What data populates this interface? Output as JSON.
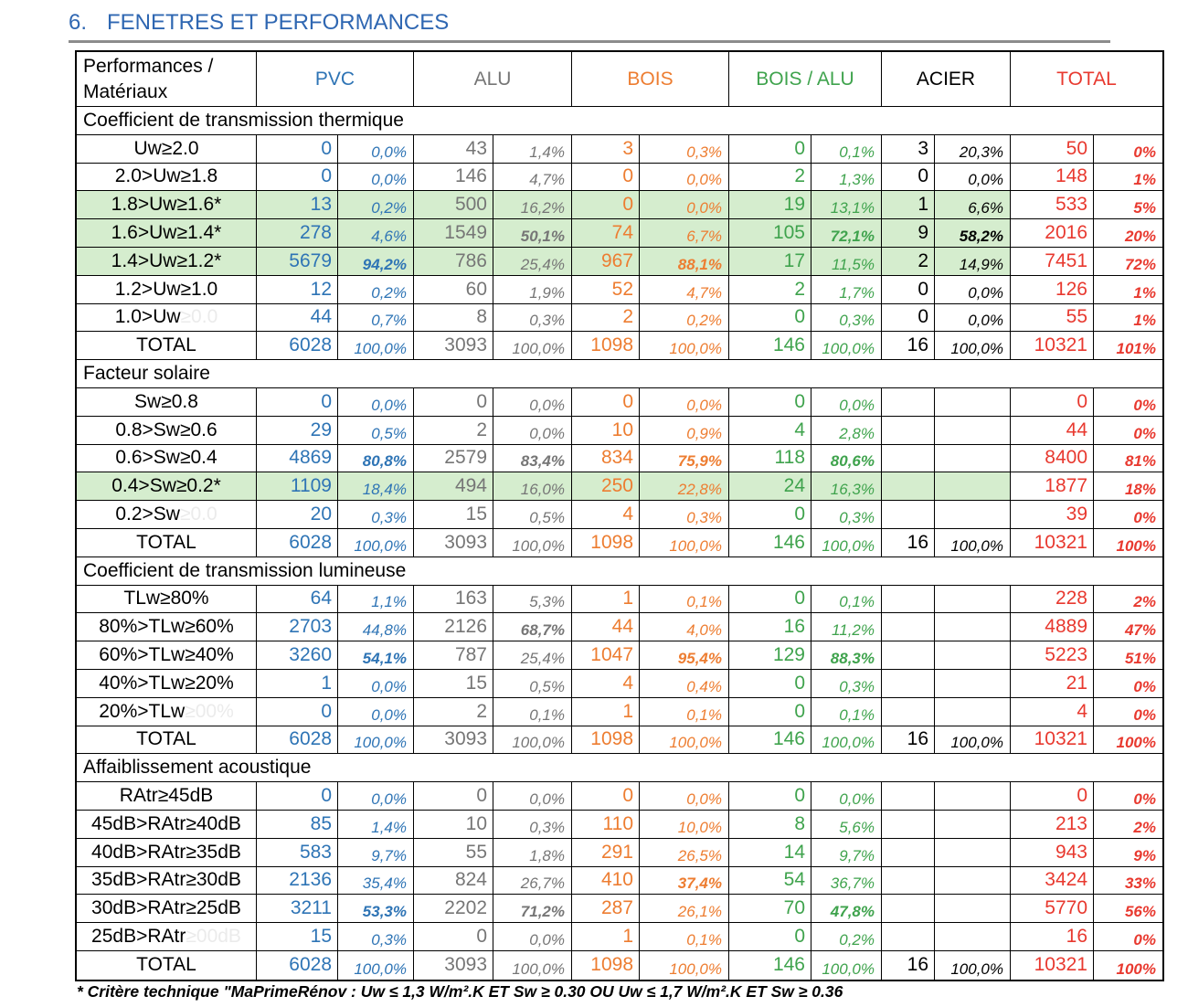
{
  "title": {
    "number": "6.",
    "text": "FENETRES ET PERFORMANCES"
  },
  "colors": {
    "title": "#2F67B2",
    "rule": "#8C8C8C",
    "highlight": "#D5EDCE",
    "faint": "#EBEBEB",
    "materials": [
      "#2E74B5",
      "#767676",
      "#ED7D31",
      "#3FA34D",
      "#000000",
      "#E8392F"
    ]
  },
  "header": {
    "corner": [
      "Performances /",
      "Matériaux"
    ],
    "materials": [
      "PVC",
      "ALU",
      "BOIS",
      "BOIS / ALU",
      "ACIER",
      "TOTAL"
    ]
  },
  "sections": [
    {
      "title": "Coefficient de transmission thermique",
      "rows": [
        {
          "label": "Uw≥2.0",
          "cells": [
            [
              "0",
              "0,0%"
            ],
            [
              "43",
              "1,4%"
            ],
            [
              "3",
              "0,3%"
            ],
            [
              "0",
              "0,1%"
            ],
            [
              "3",
              "20,3%"
            ],
            [
              "50",
              "0%"
            ]
          ]
        },
        {
          "label": "2.0>Uw≥1.8",
          "cells": [
            [
              "0",
              "0,0%"
            ],
            [
              "146",
              "4,7%"
            ],
            [
              "0",
              "0,0%"
            ],
            [
              "2",
              "1,3%"
            ],
            [
              "0",
              "0,0%"
            ],
            [
              "148",
              "1%"
            ]
          ]
        },
        {
          "label": "1.8>Uw≥1.6*",
          "highlight": true,
          "cells": [
            [
              "13",
              "0,2%"
            ],
            [
              "500",
              "16,2%"
            ],
            [
              "0",
              "0,0%"
            ],
            [
              "19",
              "13,1%"
            ],
            [
              "1",
              "6,6%"
            ],
            [
              "533",
              "5%"
            ]
          ]
        },
        {
          "label": "1.6>Uw≥1.4*",
          "highlight": true,
          "emphasis": [
            1,
            3,
            4
          ],
          "cells": [
            [
              "278",
              "4,6%"
            ],
            [
              "1549",
              "50,1%"
            ],
            [
              "74",
              "6,7%"
            ],
            [
              "105",
              "72,1%"
            ],
            [
              "9",
              "58,2%"
            ],
            [
              "2016",
              "20%"
            ]
          ]
        },
        {
          "label": "1.4>Uw≥1.2*",
          "highlight": true,
          "emphasis": [
            0,
            2
          ],
          "cells": [
            [
              "5679",
              "94,2%"
            ],
            [
              "786",
              "25,4%"
            ],
            [
              "967",
              "88,1%"
            ],
            [
              "17",
              "11,5%"
            ],
            [
              "2",
              "14,9%"
            ],
            [
              "7451",
              "72%"
            ]
          ]
        },
        {
          "label": "1.2>Uw≥1.0",
          "cells": [
            [
              "12",
              "0,2%"
            ],
            [
              "60",
              "1,9%"
            ],
            [
              "52",
              "4,7%"
            ],
            [
              "2",
              "1,7%"
            ],
            [
              "0",
              "0,0%"
            ],
            [
              "126",
              "1%"
            ]
          ]
        },
        {
          "label": "1.0>Uw",
          "label_faint": "≥0.0",
          "cells": [
            [
              "44",
              "0,7%"
            ],
            [
              "8",
              "0,3%"
            ],
            [
              "2",
              "0,2%"
            ],
            [
              "0",
              "0,3%"
            ],
            [
              "0",
              "0,0%"
            ],
            [
              "55",
              "1%"
            ]
          ]
        },
        {
          "label": "TOTAL",
          "total": true,
          "cells": [
            [
              "6028",
              "100,0%"
            ],
            [
              "3093",
              "100,0%"
            ],
            [
              "1098",
              "100,0%"
            ],
            [
              "146",
              "100,0%"
            ],
            [
              "16",
              "100,0%"
            ],
            [
              "10321",
              "101%"
            ]
          ]
        }
      ]
    },
    {
      "title": "Facteur solaire",
      "rows": [
        {
          "label": "Sw≥0.8",
          "cells": [
            [
              "0",
              "0,0%"
            ],
            [
              "0",
              "0,0%"
            ],
            [
              "0",
              "0,0%"
            ],
            [
              "0",
              "0,0%"
            ],
            [
              "",
              ""
            ],
            [
              "0",
              "0%"
            ]
          ]
        },
        {
          "label": "0.8>Sw≥0.6",
          "cells": [
            [
              "29",
              "0,5%"
            ],
            [
              "2",
              "0,0%"
            ],
            [
              "10",
              "0,9%"
            ],
            [
              "4",
              "2,8%"
            ],
            [
              "",
              ""
            ],
            [
              "44",
              "0%"
            ]
          ]
        },
        {
          "label": "0.6>Sw≥0.4",
          "emphasis": [
            0,
            1,
            2,
            3
          ],
          "cells": [
            [
              "4869",
              "80,8%"
            ],
            [
              "2579",
              "83,4%"
            ],
            [
              "834",
              "75,9%"
            ],
            [
              "118",
              "80,6%"
            ],
            [
              "",
              ""
            ],
            [
              "8400",
              "81%"
            ]
          ]
        },
        {
          "label": "0.4>Sw≥0.2*",
          "highlight": true,
          "cells": [
            [
              "1109",
              "18,4%"
            ],
            [
              "494",
              "16,0%"
            ],
            [
              "250",
              "22,8%"
            ],
            [
              "24",
              "16,3%"
            ],
            [
              "",
              ""
            ],
            [
              "1877",
              "18%"
            ]
          ]
        },
        {
          "label": "0.2>Sw",
          "label_faint": "≥0.0",
          "cells": [
            [
              "20",
              "0,3%"
            ],
            [
              "15",
              "0,5%"
            ],
            [
              "4",
              "0,3%"
            ],
            [
              "0",
              "0,3%"
            ],
            [
              "",
              ""
            ],
            [
              "39",
              "0%"
            ]
          ]
        },
        {
          "label": "TOTAL",
          "total": true,
          "cells": [
            [
              "6028",
              "100,0%"
            ],
            [
              "3093",
              "100,0%"
            ],
            [
              "1098",
              "100,0%"
            ],
            [
              "146",
              "100,0%"
            ],
            [
              "16",
              "100,0%"
            ],
            [
              "10321",
              "100%"
            ]
          ]
        }
      ]
    },
    {
      "title": "Coefficient de transmission lumineuse",
      "rows": [
        {
          "label": "TLw≥80%",
          "cells": [
            [
              "64",
              "1,1%"
            ],
            [
              "163",
              "5,3%"
            ],
            [
              "1",
              "0,1%"
            ],
            [
              "0",
              "0,1%"
            ],
            [
              "",
              ""
            ],
            [
              "228",
              "2%"
            ]
          ]
        },
        {
          "label": "80%>TLw≥60%",
          "emphasis": [
            1
          ],
          "cells": [
            [
              "2703",
              "44,8%"
            ],
            [
              "2126",
              "68,7%"
            ],
            [
              "44",
              "4,0%"
            ],
            [
              "16",
              "11,2%"
            ],
            [
              "",
              ""
            ],
            [
              "4889",
              "47%"
            ]
          ]
        },
        {
          "label": "60%>TLw≥40%",
          "emphasis": [
            0,
            2,
            3
          ],
          "cells": [
            [
              "3260",
              "54,1%"
            ],
            [
              "787",
              "25,4%"
            ],
            [
              "1047",
              "95,4%"
            ],
            [
              "129",
              "88,3%"
            ],
            [
              "",
              ""
            ],
            [
              "5223",
              "51%"
            ]
          ]
        },
        {
          "label": "40%>TLw≥20%",
          "cells": [
            [
              "1",
              "0,0%"
            ],
            [
              "15",
              "0,5%"
            ],
            [
              "4",
              "0,4%"
            ],
            [
              "0",
              "0,3%"
            ],
            [
              "",
              ""
            ],
            [
              "21",
              "0%"
            ]
          ]
        },
        {
          "label": "20%>TLw",
          "label_faint": "≥00%",
          "cells": [
            [
              "0",
              "0,0%"
            ],
            [
              "2",
              "0,1%"
            ],
            [
              "1",
              "0,1%"
            ],
            [
              "0",
              "0,1%"
            ],
            [
              "",
              ""
            ],
            [
              "4",
              "0%"
            ]
          ]
        },
        {
          "label": "TOTAL",
          "total": true,
          "cells": [
            [
              "6028",
              "100,0%"
            ],
            [
              "3093",
              "100,0%"
            ],
            [
              "1098",
              "100,0%"
            ],
            [
              "146",
              "100,0%"
            ],
            [
              "16",
              "100,0%"
            ],
            [
              "10321",
              "100%"
            ]
          ]
        }
      ]
    },
    {
      "title": "Affaiblissement acoustique",
      "rows": [
        {
          "label": "RAtr≥45dB",
          "cells": [
            [
              "0",
              "0,0%"
            ],
            [
              "0",
              "0,0%"
            ],
            [
              "0",
              "0,0%"
            ],
            [
              "0",
              "0,0%"
            ],
            [
              "",
              ""
            ],
            [
              "0",
              "0%"
            ]
          ]
        },
        {
          "label": "45dB>RAtr≥40dB",
          "cells": [
            [
              "85",
              "1,4%"
            ],
            [
              "10",
              "0,3%"
            ],
            [
              "110",
              "10,0%"
            ],
            [
              "8",
              "5,6%"
            ],
            [
              "",
              ""
            ],
            [
              "213",
              "2%"
            ]
          ]
        },
        {
          "label": "40dB>RAtr≥35dB",
          "cells": [
            [
              "583",
              "9,7%"
            ],
            [
              "55",
              "1,8%"
            ],
            [
              "291",
              "26,5%"
            ],
            [
              "14",
              "9,7%"
            ],
            [
              "",
              ""
            ],
            [
              "943",
              "9%"
            ]
          ]
        },
        {
          "label": "35dB>RAtr≥30dB",
          "emphasis": [
            2
          ],
          "cells": [
            [
              "2136",
              "35,4%"
            ],
            [
              "824",
              "26,7%"
            ],
            [
              "410",
              "37,4%"
            ],
            [
              "54",
              "36,7%"
            ],
            [
              "",
              ""
            ],
            [
              "3424",
              "33%"
            ]
          ]
        },
        {
          "label": "30dB>RAtr≥25dB",
          "emphasis": [
            0,
            1,
            3
          ],
          "cells": [
            [
              "3211",
              "53,3%"
            ],
            [
              "2202",
              "71,2%"
            ],
            [
              "287",
              "26,1%"
            ],
            [
              "70",
              "47,8%"
            ],
            [
              "",
              ""
            ],
            [
              "5770",
              "56%"
            ]
          ]
        },
        {
          "label": "25dB>RAtr",
          "label_faint": "≥00dB",
          "cells": [
            [
              "15",
              "0,3%"
            ],
            [
              "0",
              "0,0%"
            ],
            [
              "1",
              "0,1%"
            ],
            [
              "0",
              "0,2%"
            ],
            [
              "",
              ""
            ],
            [
              "16",
              "0%"
            ]
          ]
        },
        {
          "label": "TOTAL",
          "total": true,
          "cells": [
            [
              "6028",
              "100,0%"
            ],
            [
              "3093",
              "100,0%"
            ],
            [
              "1098",
              "100,0%"
            ],
            [
              "146",
              "100,0%"
            ],
            [
              "16",
              "100,0%"
            ],
            [
              "10321",
              "100%"
            ]
          ]
        }
      ]
    }
  ],
  "footnote": "* Critère technique \"MaPrimeRénov : Uw ≤ 1,3 W/m².K ET Sw ≥ 0.30 OU Uw ≤ 1,7 W/m².K ET Sw ≥ 0.36"
}
